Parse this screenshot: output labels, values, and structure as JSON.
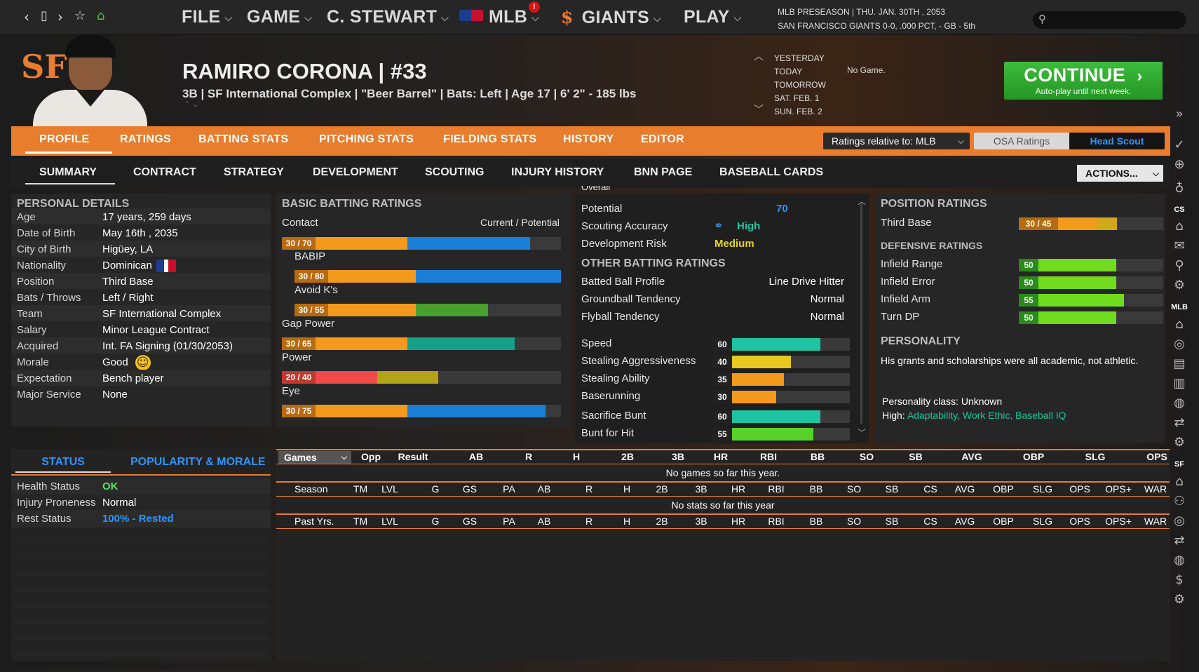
{
  "topbar": {
    "back_icon": "chevron-left",
    "copy_icon": "document",
    "fwd_icon": "chevron-right",
    "star_icon": "star",
    "home_icon": "home",
    "menus": [
      "FILE",
      "GAME",
      "C. STEWART",
      "MLB",
      "GIANTS",
      "PLAY"
    ],
    "mlb_alert": "!",
    "date_line1": "MLB PRESEASON  |  THU. JAN. 30TH , 2053",
    "date_line2": "SAN FRANCISCO GIANTS  0-0, .000 PCT, - GB - 5th"
  },
  "player": {
    "name": "RAMIRO CORONA  |  #33",
    "sub": "3B | SF International Complex  |  \"Beer Barrel\" | Bats: Left  |  Age 17  |  6' 2\"  - 185 lbs",
    "logo": "SF"
  },
  "schedule": {
    "days": [
      "YESTERDAY",
      "TODAY",
      "TOMORROW",
      "SAT. FEB. 1",
      "SUN. FEB. 2"
    ],
    "today_game": "No Game."
  },
  "continue": {
    "label": "CONTINUE",
    "sub": "Auto-play until next week."
  },
  "tabs": [
    "PROFILE",
    "RATINGS",
    "BATTING STATS",
    "PITCHING STATS",
    "FIELDING STATS",
    "HISTORY",
    "EDITOR"
  ],
  "ratings_select": "Ratings relative to: MLB",
  "osa_label": "OSA Ratings",
  "scout_label": "Head Scout",
  "subtabs": [
    "SUMMARY",
    "CONTRACT",
    "STRATEGY",
    "DEVELOPMENT",
    "SCOUTING",
    "INJURY HISTORY",
    "BNN PAGE",
    "BASEBALL CARDS"
  ],
  "actions_label": "ACTIONS...",
  "personal": {
    "title": "PERSONAL DETAILS",
    "rows": [
      [
        "Age",
        "17 years, 259 days"
      ],
      [
        "Date of Birth",
        "May 16th , 2035"
      ],
      [
        "City of Birth",
        "Higüey, LA"
      ],
      [
        "Nationality",
        "Dominican"
      ],
      [
        "Position",
        "Third Base"
      ],
      [
        "Bats / Throws",
        "Left / Right"
      ],
      [
        "Team",
        "SF International Complex"
      ],
      [
        "Salary",
        "Minor League Contract"
      ],
      [
        "Acquired",
        "Int. FA Signing (01/30/2053)"
      ],
      [
        "Morale",
        "Good"
      ],
      [
        "Expectation",
        "Bench player"
      ],
      [
        "Major Service",
        "None"
      ]
    ]
  },
  "status": {
    "tab1": "STATUS",
    "tab2": "POPULARITY & MORALE",
    "rows": [
      [
        "Health Status",
        "OK"
      ],
      [
        "Injury Proneness",
        "Normal"
      ],
      [
        "Rest Status",
        "100% - Rested"
      ]
    ]
  },
  "batting": {
    "title": "BASIC BATTING RATINGS",
    "cp_label": "Current / Potential",
    "items": [
      {
        "name": "Contact",
        "label": "30 / 70",
        "current": 30,
        "potential": 70,
        "color": "#1c7fd6"
      },
      {
        "name": "BABIP",
        "label": "30 / 80",
        "current": 30,
        "potential": 80,
        "color": "#1c7fd6"
      },
      {
        "name": "Avoid K's",
        "label": "30 / 55",
        "current": 30,
        "potential": 55,
        "color": "#4aa02c"
      },
      {
        "name": "Gap Power",
        "label": "30 / 65",
        "current": 30,
        "potential": 65,
        "color": "#17a088"
      },
      {
        "name": "Power",
        "label": "20 / 40",
        "current": 20,
        "potential": 40,
        "color": "#b5a317"
      },
      {
        "name": "Eye",
        "label": "30 / 75",
        "current": 30,
        "potential": 75,
        "color": "#1c7fd6"
      }
    ]
  },
  "middle": {
    "overall_label": "Overall",
    "potential": {
      "label": "Potential",
      "value": "70"
    },
    "accuracy": {
      "label": "Scouting Accuracy",
      "value": "High"
    },
    "risk": {
      "label": "Development Risk",
      "value": "Medium"
    },
    "other_title": "OTHER BATTING RATINGS",
    "profile": [
      [
        "Batted Ball Profile",
        "Line Drive Hitter"
      ],
      [
        "Groundball Tendency",
        "Normal"
      ],
      [
        "Flyball Tendency",
        "Normal"
      ]
    ],
    "bars": [
      {
        "name": "Speed",
        "value": 60,
        "label": "60",
        "color": "#1ec4a2"
      },
      {
        "name": "Stealing Aggressiveness",
        "value": 40,
        "label": "40",
        "color": "#e6c81e"
      },
      {
        "name": "Stealing Ability",
        "value": 35,
        "label": "35",
        "color": "#f39a1c"
      },
      {
        "name": "Baserunning",
        "value": 30,
        "label": "30",
        "color": "#f39a1c"
      },
      {
        "name": "Sacrifice Bunt",
        "value": 60,
        "label": "60",
        "color": "#1ec4a2"
      },
      {
        "name": "Bunt for Hit",
        "value": 55,
        "label": "55",
        "color": "#58d22a"
      }
    ]
  },
  "position": {
    "title": "POSITION RATINGS",
    "pos": {
      "name": "Third Base",
      "label": "30 / 45",
      "current": 30,
      "potential": 45
    },
    "def_title": "DEFENSIVE RATINGS",
    "def": [
      {
        "name": "Infield Range",
        "label": "50",
        "value": 50
      },
      {
        "name": "Infield Error",
        "label": "50",
        "value": 50
      },
      {
        "name": "Infield Arm",
        "label": "55",
        "value": 55
      },
      {
        "name": "Turn DP",
        "label": "50",
        "value": 50
      }
    ],
    "personality_title": "PERSONALITY",
    "personality_text": "His grants and scholarships were all academic, not athletic.",
    "class_text": "Personality class: Unknown",
    "high_label": "High:",
    "high_value": "Adaptability, Work Ethic, Baseball IQ"
  },
  "stats": {
    "games_select": "Games",
    "game_cols": [
      "Opp",
      "Result",
      "AB",
      "R",
      "H",
      "2B",
      "3B",
      "HR",
      "RBI",
      "BB",
      "SO",
      "SB",
      "AVG",
      "OBP",
      "SLG",
      "OPS"
    ],
    "no_games": "No games so far this year.",
    "season_label": "Season",
    "season_cols": [
      "TM",
      "LVL",
      "G",
      "GS",
      "PA",
      "AB",
      "R",
      "H",
      "2B",
      "3B",
      "HR",
      "RBI",
      "BB",
      "SO",
      "SB",
      "CS",
      "AVG",
      "OBP",
      "SLG",
      "OPS",
      "OPS+",
      "WAR"
    ],
    "no_stats": "No stats so far this year",
    "past_label": "Past Yrs."
  },
  "side_labels": [
    "CS",
    "MLB",
    "SF"
  ],
  "colors": {
    "orange": "#e87d2e",
    "green": "#2faf2f",
    "blue": "#1c7fd6",
    "teal": "#2ad1a0"
  }
}
